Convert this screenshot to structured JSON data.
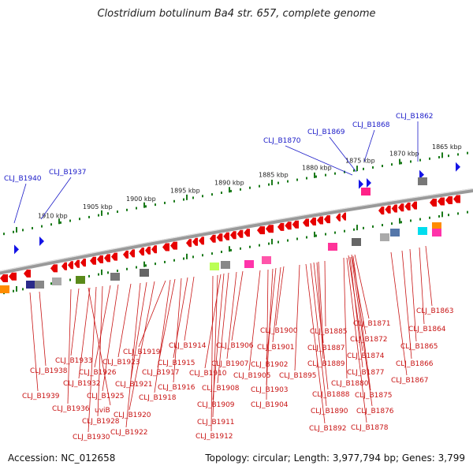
{
  "title": "Clostridium botulinum Ba4 str. 657, complete genome",
  "accession": "Accession: NC_012658",
  "summary": "Topology: circular; Length: 3,977,794 bp; Genes: 3,799",
  "colors": {
    "forward": "#1414e6",
    "reverse": "#e60000",
    "blue_label": "#1b1bc8",
    "red_label": "#c81414",
    "tick": "#1a7a1a"
  },
  "kbp_labels": [
    "1865 kbp",
    "1870 kbp",
    "1875 kbp",
    "1880 kbp",
    "1885 kbp",
    "1890 kbp",
    "1895 kbp",
    "1900 kbp",
    "1905 kbp",
    "1910 kbp"
  ],
  "blue_genes": [
    "CLJ_B1862",
    "CLJ_B1868",
    "CLJ_B1869",
    "CLJ_B1870",
    "CLJ_B1937",
    "CLJ_B1940"
  ],
  "red_genes": [
    "CLJ_B1863",
    "CLJ_B1864",
    "CLJ_B1865",
    "CLJ_B1866",
    "CLJ_B1867",
    "CLJ_B1871",
    "CLJ_B1872",
    "CLJ_B1874",
    "CLJ_B1875",
    "CLJ_B1876",
    "CLJ_B1877",
    "CLJ_B1878",
    "CLJ_B1880",
    "CLJ_B1885",
    "CLJ_B1887",
    "CLJ_B1888",
    "CLJ_B1889",
    "CLJ_B1890",
    "CLJ_B1892",
    "CLJ_B1895",
    "CLJ_B1900",
    "CLJ_B1901",
    "CLJ_B1902",
    "CLJ_B1903",
    "CLJ_B1904",
    "CLJ_B1905",
    "CLJ_B1906",
    "CLJ_B1907",
    "CLJ_B1908",
    "CLJ_B1909",
    "CLJ_B1910",
    "CLJ_B1911",
    "CLJ_B1912",
    "CLJ_B1914",
    "CLJ_B1915",
    "CLJ_B1916",
    "CLJ_B1917",
    "CLJ_B1918",
    "CLJ_B1919",
    "CLJ_B1920",
    "CLJ_B1921",
    "CLJ_B1922",
    "CLJ_B1923",
    "CLJ_B1925",
    "CLJ_B1926",
    "CLJ_B1928",
    "CLJ_B1930",
    "CLJ_B1932",
    "CLJ_B1933",
    "CLJ_B1936",
    "CLJ_B1938",
    "CLJ_B1939",
    "uviB"
  ]
}
